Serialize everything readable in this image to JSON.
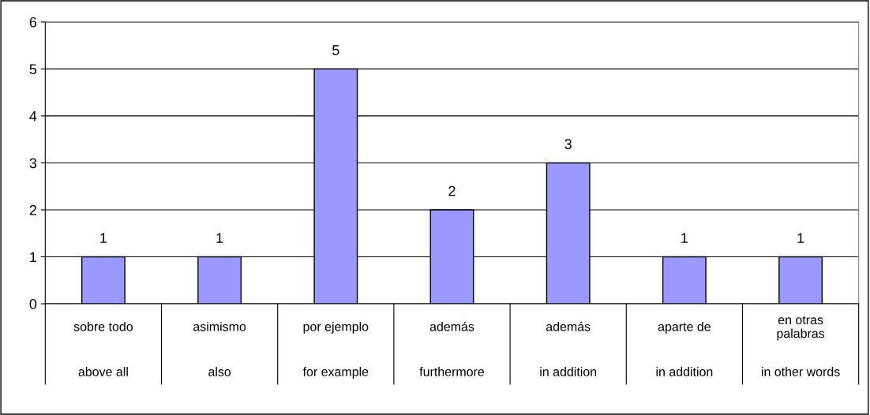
{
  "chart_data": {
    "type": "bar",
    "categories": [
      "sobre todo\nabove all",
      "asimismo\nalso",
      "por ejemplo\nfor example",
      "además\nfurthermore",
      "además\nin addition",
      "aparte de\nin addition",
      "en otras\npalabras\nin other words"
    ],
    "values": [
      1,
      1,
      5,
      2,
      3,
      1,
      1
    ],
    "color": "#9999ff",
    "ylim": [
      0,
      6
    ],
    "yticks": [
      0,
      1,
      2,
      3,
      4,
      5,
      6
    ],
    "grid": "y",
    "data_labels": true
  }
}
